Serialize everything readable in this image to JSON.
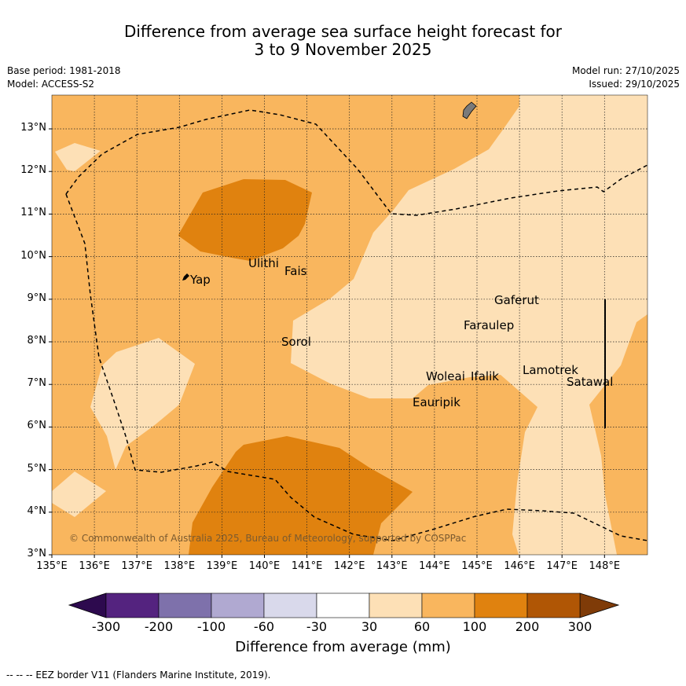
{
  "title": {
    "line1": "Difference from average sea surface height forecast for",
    "line2": "3 to 9 November 2025"
  },
  "meta": {
    "base_period": "Base period: 1981-2018",
    "model": "Model: ACCESS-S2",
    "model_run": "Model run: 27/10/2025",
    "issued": "Issued: 29/10/2025"
  },
  "map": {
    "lon_ticks": [
      "135°E",
      "136°E",
      "137°E",
      "138°E",
      "139°E",
      "140°E",
      "141°E",
      "142°E",
      "143°E",
      "144°E",
      "145°E",
      "146°E",
      "147°E",
      "148°E"
    ],
    "lat_ticks": [
      "3°N",
      "4°N",
      "5°N",
      "6°N",
      "7°N",
      "8°N",
      "9°N",
      "10°N",
      "11°N",
      "12°N",
      "13°N"
    ],
    "copyright": "© Commonwealth of Australia 2025, Bureau of Meteorology, supported by COSPPac",
    "places": [
      {
        "name": "Ulithi"
      },
      {
        "name": "Fais"
      },
      {
        "name": "Yap"
      },
      {
        "name": "Gaferut"
      },
      {
        "name": "Faraulep"
      },
      {
        "name": "Sorol"
      },
      {
        "name": "Lamotrek"
      },
      {
        "name": "Woleai"
      },
      {
        "name": "Ifalik"
      },
      {
        "name": "Satawal"
      },
      {
        "name": "Eauripik"
      }
    ]
  },
  "colorbar": {
    "label": "Difference from average (mm)",
    "ticks": [
      "-300",
      "-200",
      "-100",
      "-60",
      "-30",
      "30",
      "60",
      "100",
      "200",
      "300"
    ],
    "colors": {
      "below_min": "#2d0a4e",
      "bins": [
        "#54237f",
        "#7e71ab",
        "#b0a9d1",
        "#d9d9eb",
        "#ffffff",
        "#fde0b6",
        "#f9b65e",
        "#e0820f",
        "#b05605"
      ],
      "above_max": "#7f3b08"
    }
  },
  "footer": {
    "legend": "--  --  -- EEZ border V11 (Flanders Marine Institute, 2019)."
  }
}
